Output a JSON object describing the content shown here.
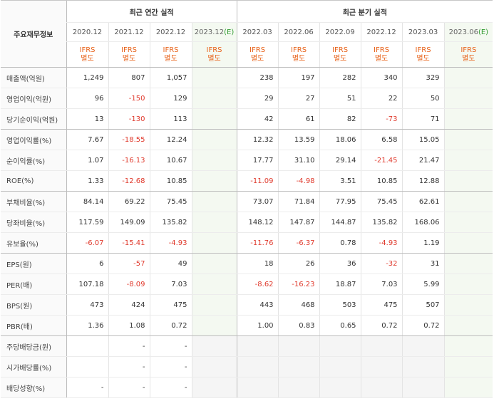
{
  "header": {
    "corner_label": "주요재무정보",
    "annual_title": "최근 연간 실적",
    "quarterly_title": "최근 분기 실적",
    "annual_periods": [
      "2020.12",
      "2021.12",
      "2022.12",
      "2023.12"
    ],
    "annual_est_mark": "(E)",
    "quarterly_periods": [
      "2022.03",
      "2022.06",
      "2022.09",
      "2022.12",
      "2023.03",
      "2023.06"
    ],
    "quarterly_est_mark": "(E)",
    "basis_line1": "IFRS",
    "basis_line2": "별도"
  },
  "rows": [
    {
      "label": "매출액(억원)",
      "annual": [
        "1,249",
        "807",
        "1,057",
        ""
      ],
      "quarterly": [
        "238",
        "197",
        "282",
        "340",
        "329",
        ""
      ]
    },
    {
      "label": "영업이익(억원)",
      "annual": [
        "96",
        "-150",
        "129",
        ""
      ],
      "quarterly": [
        "29",
        "27",
        "51",
        "22",
        "50",
        ""
      ]
    },
    {
      "label": "당기순이익(억원)",
      "annual": [
        "13",
        "-130",
        "113",
        ""
      ],
      "quarterly": [
        "42",
        "61",
        "82",
        "-73",
        "71",
        ""
      ]
    },
    {
      "label": "영업이익률(%)",
      "annual": [
        "7.67",
        "-18.55",
        "12.24",
        ""
      ],
      "quarterly": [
        "12.32",
        "13.59",
        "18.06",
        "6.58",
        "15.05",
        ""
      ]
    },
    {
      "label": "순이익률(%)",
      "annual": [
        "1.07",
        "-16.13",
        "10.67",
        ""
      ],
      "quarterly": [
        "17.77",
        "31.10",
        "29.14",
        "-21.45",
        "21.47",
        ""
      ]
    },
    {
      "label": "ROE(%)",
      "annual": [
        "1.33",
        "-12.68",
        "10.85",
        ""
      ],
      "quarterly": [
        "-11.09",
        "-4.98",
        "3.51",
        "10.85",
        "12.88",
        ""
      ]
    },
    {
      "label": "부채비율(%)",
      "annual": [
        "84.14",
        "69.22",
        "75.45",
        ""
      ],
      "quarterly": [
        "73.07",
        "71.84",
        "77.95",
        "75.45",
        "62.61",
        ""
      ]
    },
    {
      "label": "당좌비율(%)",
      "annual": [
        "117.59",
        "149.09",
        "135.82",
        ""
      ],
      "quarterly": [
        "148.12",
        "147.87",
        "144.87",
        "135.82",
        "168.06",
        ""
      ]
    },
    {
      "label": "유보율(%)",
      "annual": [
        "-6.07",
        "-15.41",
        "-4.93",
        ""
      ],
      "quarterly": [
        "-11.76",
        "-6.37",
        "0.78",
        "-4.93",
        "1.19",
        ""
      ]
    },
    {
      "label": "EPS(원)",
      "annual": [
        "6",
        "-57",
        "49",
        ""
      ],
      "quarterly": [
        "18",
        "26",
        "36",
        "-32",
        "31",
        ""
      ]
    },
    {
      "label": "PER(배)",
      "annual": [
        "107.18",
        "-8.09",
        "7.03",
        ""
      ],
      "quarterly": [
        "-8.62",
        "-16.23",
        "18.87",
        "7.03",
        "5.99",
        ""
      ]
    },
    {
      "label": "BPS(원)",
      "annual": [
        "473",
        "424",
        "475",
        ""
      ],
      "quarterly": [
        "443",
        "468",
        "503",
        "475",
        "507",
        ""
      ]
    },
    {
      "label": "PBR(배)",
      "annual": [
        "1.36",
        "1.08",
        "0.72",
        ""
      ],
      "quarterly": [
        "1.00",
        "0.83",
        "0.65",
        "0.72",
        "0.72",
        ""
      ]
    },
    {
      "label": "주당배당금(원)",
      "annual": [
        "",
        "-",
        "-",
        ""
      ],
      "quarterly": [
        "",
        "",
        "",
        "",
        "",
        ""
      ]
    },
    {
      "label": "시가배당률(%)",
      "annual": [
        "",
        "-",
        "-",
        ""
      ],
      "quarterly": [
        "",
        "",
        "",
        "",
        "",
        ""
      ]
    },
    {
      "label": "배당성향(%)",
      "annual": [
        "-",
        "-",
        "-",
        ""
      ],
      "quarterly": [
        "",
        "",
        "",
        "",
        "",
        ""
      ]
    }
  ],
  "colors": {
    "negative": "#e03b2e",
    "basis": "#e8631b",
    "estimate_bg": "#f4f9f1"
  }
}
